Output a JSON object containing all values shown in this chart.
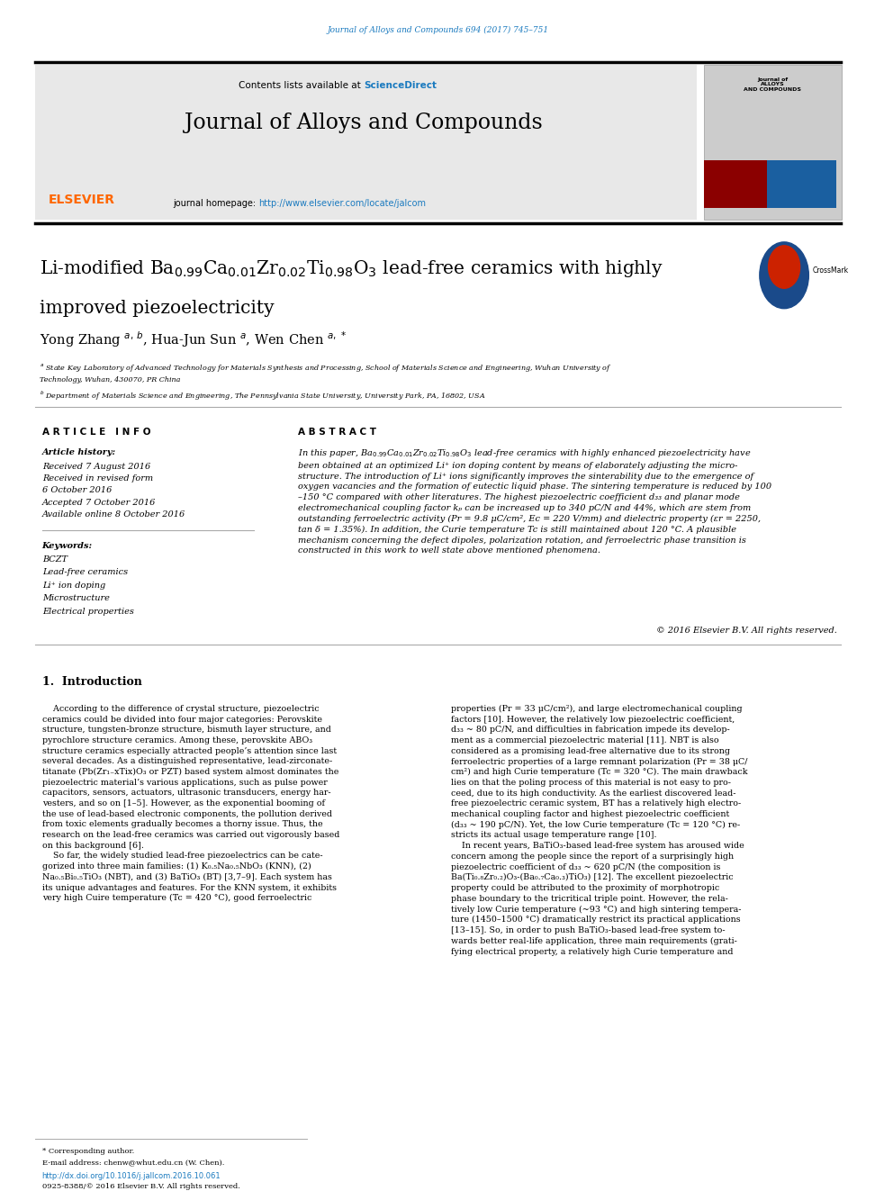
{
  "bg_color": "#ffffff",
  "page_width": 9.92,
  "page_height": 13.23,
  "journal_citation": "Journal of Alloys and Compounds 694 (2017) 745–751",
  "journal_citation_color": "#1a7abf",
  "header_bg": "#e8e8e8",
  "header_border_color": "#000000",
  "contents_text": "Contents lists available at ",
  "sciencedirect_text": "ScienceDirect",
  "sciencedirect_color": "#1a7abf",
  "journal_name": "Journal of Alloys and Compounds",
  "homepage_text": "journal homepage: ",
  "homepage_url": "http://www.elsevier.com/locate/jalcom",
  "homepage_url_color": "#1a7abf",
  "article_info_header": "A R T I C L E   I N F O",
  "abstract_header": "A B S T R A C T",
  "article_history_label": "Article history:",
  "received": "Received 7 August 2016",
  "received_revised": "Received in revised form",
  "received_revised2": "6 October 2016",
  "accepted": "Accepted 7 October 2016",
  "available_online": "Available online 8 October 2016",
  "keywords_label": "Keywords:",
  "keywords": [
    "BCZT",
    "Lead-free ceramics",
    "Li⁺ ion doping",
    "Microstructure",
    "Electrical properties"
  ],
  "copyright": "© 2016 Elsevier B.V. All rights reserved.",
  "intro_header": "1.  Introduction",
  "footnote_star": "* Corresponding author.",
  "footnote_email": "E-mail address: chenw@whut.edu.cn (W. Chen).",
  "footnote_doi": "http://dx.doi.org/10.1016/j.jallcom.2016.10.061",
  "footnote_issn": "0925-8388/© 2016 Elsevier B.V. All rights reserved.",
  "elsevier_color": "#ff6600",
  "homepage_url_color2": "#1a7abf"
}
